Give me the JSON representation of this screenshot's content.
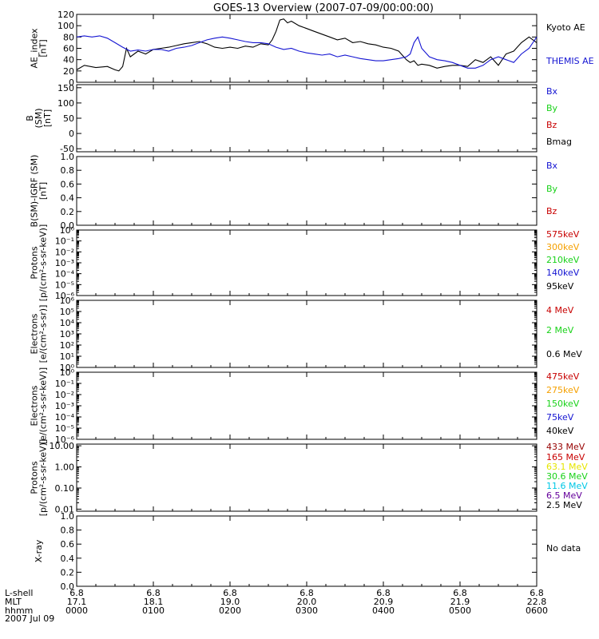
{
  "title": "GOES-13 Overview (2007-07-09/00:00:00)",
  "colors": {
    "black": "#000000",
    "blue": "#1414d2",
    "green": "#19d219",
    "red": "#c80000",
    "darkred": "#960000",
    "orange": "#f5a000",
    "yellow": "#e6e600",
    "cyan": "#00c8e6",
    "purple": "#64009b"
  },
  "x_axis": {
    "row_labels": [
      "L-shell",
      "MLT",
      "hhmm"
    ],
    "date_label": "2007 Jul 09",
    "lshell": [
      "6.8",
      "6.8",
      "6.8",
      "6.8",
      "6.8",
      "6.8",
      "6.8"
    ],
    "mlt": [
      "17.1",
      "18.1",
      "19.0",
      "20.0",
      "20.9",
      "21.9",
      "22.8"
    ],
    "hhmm": [
      "0000",
      "0100",
      "0200",
      "0300",
      "0400",
      "0500",
      "0600"
    ]
  },
  "chart_data": [
    {
      "type": "line",
      "id": "ae",
      "ylabel": [
        "AE_index",
        "[nT]"
      ],
      "ylim": [
        0,
        120
      ],
      "yticks": [
        "0",
        "20",
        "40",
        "60",
        "80",
        "100",
        "120"
      ],
      "legend": [
        {
          "name": "Kyoto AE",
          "color": "#000000"
        },
        {
          "name": "THEMIS AE",
          "color": "#1414d2"
        }
      ],
      "x_unit": "hours since 2007-07-09/00:00",
      "series": [
        {
          "name": "Kyoto AE",
          "color": "#000000",
          "x": [
            0,
            0.1,
            0.25,
            0.4,
            0.5,
            0.55,
            0.6,
            0.65,
            0.7,
            0.8,
            0.9,
            1.0,
            1.1,
            1.2,
            1.3,
            1.4,
            1.5,
            1.6,
            1.7,
            1.8,
            1.9,
            2.0,
            2.1,
            2.2,
            2.3,
            2.4,
            2.5,
            2.55,
            2.6,
            2.65,
            2.7,
            2.75,
            2.8,
            2.9,
            3.0,
            3.1,
            3.2,
            3.3,
            3.4,
            3.5,
            3.6,
            3.7,
            3.8,
            3.9,
            4.0,
            4.1,
            4.2,
            4.3,
            4.35,
            4.4,
            4.45,
            4.5,
            4.6,
            4.7,
            4.8,
            4.9,
            5.0,
            5.1,
            5.2,
            5.3,
            5.4,
            5.5,
            5.6,
            5.7,
            5.8,
            5.9,
            6.0
          ],
          "y": [
            22,
            30,
            26,
            28,
            22,
            20,
            28,
            60,
            45,
            55,
            50,
            58,
            60,
            62,
            65,
            68,
            70,
            72,
            68,
            62,
            60,
            62,
            60,
            64,
            62,
            68,
            66,
            75,
            90,
            110,
            112,
            105,
            108,
            100,
            95,
            90,
            85,
            80,
            75,
            78,
            70,
            72,
            68,
            66,
            62,
            60,
            55,
            40,
            35,
            38,
            30,
            32,
            30,
            25,
            28,
            30,
            30,
            28,
            40,
            35,
            45,
            30,
            50,
            55,
            70,
            80,
            70
          ]
        },
        {
          "name": "THEMIS AE",
          "color": "#1414d2",
          "x": [
            0,
            0.1,
            0.2,
            0.3,
            0.4,
            0.5,
            0.6,
            0.7,
            0.8,
            0.9,
            1.0,
            1.1,
            1.2,
            1.3,
            1.4,
            1.5,
            1.6,
            1.7,
            1.8,
            1.9,
            2.0,
            2.1,
            2.2,
            2.3,
            2.4,
            2.5,
            2.6,
            2.7,
            2.8,
            2.9,
            3.0,
            3.1,
            3.2,
            3.3,
            3.4,
            3.5,
            3.6,
            3.7,
            3.8,
            3.9,
            4.0,
            4.1,
            4.2,
            4.3,
            4.35,
            4.4,
            4.45,
            4.5,
            4.6,
            4.7,
            4.8,
            4.9,
            5.0,
            5.1,
            5.2,
            5.3,
            5.4,
            5.5,
            5.6,
            5.7,
            5.8,
            5.9,
            6.0
          ],
          "y": [
            80,
            82,
            80,
            82,
            78,
            70,
            62,
            55,
            57,
            55,
            58,
            58,
            55,
            60,
            62,
            65,
            70,
            75,
            78,
            80,
            78,
            75,
            72,
            70,
            70,
            68,
            62,
            58,
            60,
            55,
            52,
            50,
            48,
            50,
            45,
            48,
            45,
            42,
            40,
            38,
            38,
            40,
            42,
            45,
            50,
            70,
            80,
            60,
            45,
            40,
            38,
            35,
            30,
            25,
            25,
            30,
            40,
            45,
            40,
            35,
            50,
            60,
            80
          ]
        }
      ]
    },
    {
      "type": "line",
      "id": "bfield",
      "ylabel": [
        "B",
        "(SM)",
        "[nT]"
      ],
      "ylim": [
        -60,
        160
      ],
      "yticks": [
        "-50",
        "0",
        "50",
        "100",
        "150"
      ],
      "legend": [
        {
          "name": "Bx",
          "color": "#1414d2"
        },
        {
          "name": "By",
          "color": "#19d219"
        },
        {
          "name": "Bz",
          "color": "#c80000"
        },
        {
          "name": "Bmag",
          "color": "#000000"
        }
      ]
    },
    {
      "type": "line",
      "id": "bigrf",
      "ylabel": [
        "B(SM)-IGRF (SM)",
        "[nT]"
      ],
      "ylim": [
        0,
        1
      ],
      "yticks": [
        "0.0",
        "0.2",
        "0.4",
        "0.6",
        "0.8",
        "1.0"
      ],
      "legend": [
        {
          "name": "Bx",
          "color": "#1414d2"
        },
        {
          "name": "By",
          "color": "#19d219"
        },
        {
          "name": "Bz",
          "color": "#c80000"
        }
      ]
    },
    {
      "type": "line",
      "id": "protons_kev",
      "scale": "log",
      "ylabel": [
        "Protons",
        "[p/(cm²-s-sr-keV)]"
      ],
      "ylim": [
        1e-06,
        1
      ],
      "yticks": [
        "10⁻⁶",
        "10⁻⁵",
        "10⁻⁴",
        "10⁻³",
        "10⁻²",
        "10⁻¹",
        "10⁰"
      ],
      "legend": [
        {
          "name": "575keV",
          "color": "#c80000"
        },
        {
          "name": "300keV",
          "color": "#f5a000"
        },
        {
          "name": "210keV",
          "color": "#19d219"
        },
        {
          "name": "140keV",
          "color": "#1414d2"
        },
        {
          "name": "95keV",
          "color": "#000000"
        }
      ]
    },
    {
      "type": "line",
      "id": "electrons_mev",
      "scale": "log",
      "ylabel": [
        "Electrons",
        "[e/(cm²-s-sr)]"
      ],
      "ylim": [
        1,
        1000000.0
      ],
      "yticks": [
        "10⁰",
        "10¹",
        "10²",
        "10³",
        "10⁴",
        "10⁵",
        "10⁶"
      ],
      "legend": [
        {
          "name": "4 MeV",
          "color": "#c80000"
        },
        {
          "name": "2 MeV",
          "color": "#19d219"
        },
        {
          "name": "0.6 MeV",
          "color": "#000000"
        }
      ]
    },
    {
      "type": "line",
      "id": "electrons_kev",
      "scale": "log",
      "ylabel": [
        "Electrons",
        "[e/(cm²-s-sr-keV)]"
      ],
      "ylim": [
        1e-06,
        1
      ],
      "yticks": [
        "10⁻⁶",
        "10⁻⁵",
        "10⁻⁴",
        "10⁻³",
        "10⁻²",
        "10⁻¹",
        "10⁰"
      ],
      "legend": [
        {
          "name": "475keV",
          "color": "#c80000"
        },
        {
          "name": "275keV",
          "color": "#f5a000"
        },
        {
          "name": "150keV",
          "color": "#19d219"
        },
        {
          "name": "75keV",
          "color": "#1414d2"
        },
        {
          "name": "40keV",
          "color": "#000000"
        }
      ]
    },
    {
      "type": "line",
      "id": "protons_mev",
      "scale": "log",
      "ylabel": [
        "Protons",
        "[p/(cm²-s-sr-keV)]"
      ],
      "ylim": [
        0.008,
        12
      ],
      "yticks": [
        "0.01",
        "0.10",
        "1.00",
        "10.00"
      ],
      "legend": [
        {
          "name": "433 MeV",
          "color": "#960000"
        },
        {
          "name": "165 MeV",
          "color": "#c80000"
        },
        {
          "name": "63.1 MeV",
          "color": "#e6e600"
        },
        {
          "name": "30.6 MeV",
          "color": "#19d219"
        },
        {
          "name": "11.6 MeV",
          "color": "#00c8e6"
        },
        {
          "name": "6.5 MeV",
          "color": "#64009b"
        },
        {
          "name": "2.5 MeV",
          "color": "#000000"
        }
      ]
    },
    {
      "type": "line",
      "id": "xray",
      "ylabel": [
        "X-ray"
      ],
      "ylim": [
        0,
        1
      ],
      "yticks": [
        "0.0",
        "0.2",
        "0.4",
        "0.6",
        "0.8",
        "1.0"
      ],
      "legend": [
        {
          "name": "No data",
          "color": "#000000"
        }
      ]
    }
  ]
}
